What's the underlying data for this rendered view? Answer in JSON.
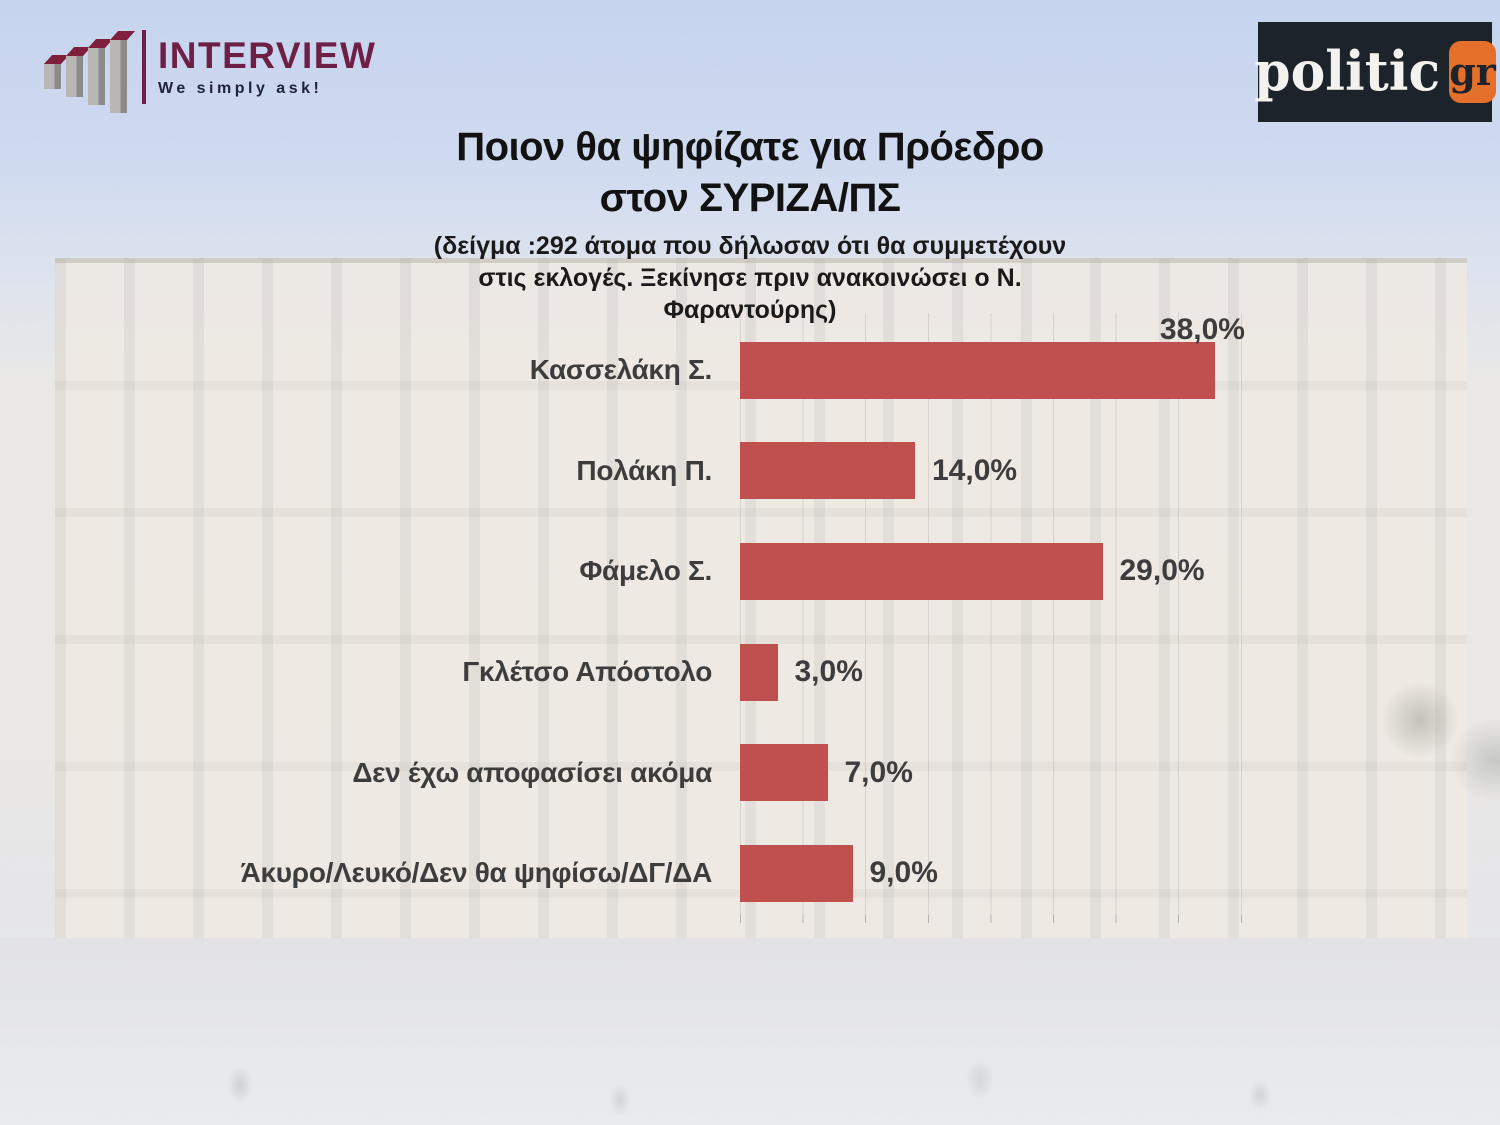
{
  "header": {
    "interview_logo": {
      "name": "INTERVIEW",
      "tagline": "We simply ask!"
    },
    "politic_logo": {
      "name": "politic",
      "tld": "gr"
    }
  },
  "title": {
    "line1": "Ποιον θα ψηφίζατε για Πρόεδρο",
    "line2": "στον ΣΥΡΙΖΑ/ΠΣ",
    "subtitle": "(δείγμα :292 άτομα που δήλωσαν ότι θα συμμετέχουν\nστις εκλογές. Ξεκίνησε πριν ανακοινώσει ο Ν.\nΦαραντούρης)"
  },
  "chart_data": {
    "type": "bar",
    "orientation": "horizontal",
    "title": "Ποιον θα ψηφίζατε για Πρόεδρο στον ΣΥΡΙΖΑ/ΠΣ",
    "subtitle": "(δείγμα :292 άτομα που δήλωσαν ότι θα συμμετέχουν στις εκλογές. Ξεκίνησε πριν ανακοινώσει ο Ν. Φαραντούρης)",
    "sample_size": 292,
    "categories": [
      "Κασσελάκη Σ.",
      "Πολάκη Π.",
      "Φάμελο Σ.",
      "Γκλέτσο Απόστολο",
      "Δεν έχω αποφασίσει ακόμα",
      "Άκυρο/Λευκό/Δεν θα ψηφίσω/ΔΓ/ΔΑ"
    ],
    "values": [
      38.0,
      14.0,
      29.0,
      3.0,
      7.0,
      9.0
    ],
    "value_labels": [
      "38,0%",
      "14,0%",
      "29,0%",
      "3,0%",
      "7,0%",
      "9,0%"
    ],
    "xlim": [
      0,
      40
    ],
    "gridline_interval": 5,
    "grid": true,
    "legend": false,
    "bar_color": "#c05050",
    "text_color": "#3d3d3d",
    "rows": [
      {
        "label": "Κασσελάκη Σ.",
        "value": 38.0,
        "display": "38,0%",
        "value_label_above": true
      },
      {
        "label": "Πολάκη Π.",
        "value": 14.0,
        "display": "14,0%",
        "value_label_above": false
      },
      {
        "label": "Φάμελο Σ.",
        "value": 29.0,
        "display": "29,0%",
        "value_label_above": false
      },
      {
        "label": "Γκλέτσο Απόστολο",
        "value": 3.0,
        "display": "3,0%",
        "value_label_above": false
      },
      {
        "label": "Δεν έχω αποφασίσει ακόμα",
        "value": 7.0,
        "display": "7,0%",
        "value_label_above": false
      },
      {
        "label": "Άκυρο/Λευκό/Δεν θα ψηφίσω/ΔΓ/ΔΑ",
        "value": 9.0,
        "display": "9,0%",
        "value_label_above": false
      }
    ]
  }
}
